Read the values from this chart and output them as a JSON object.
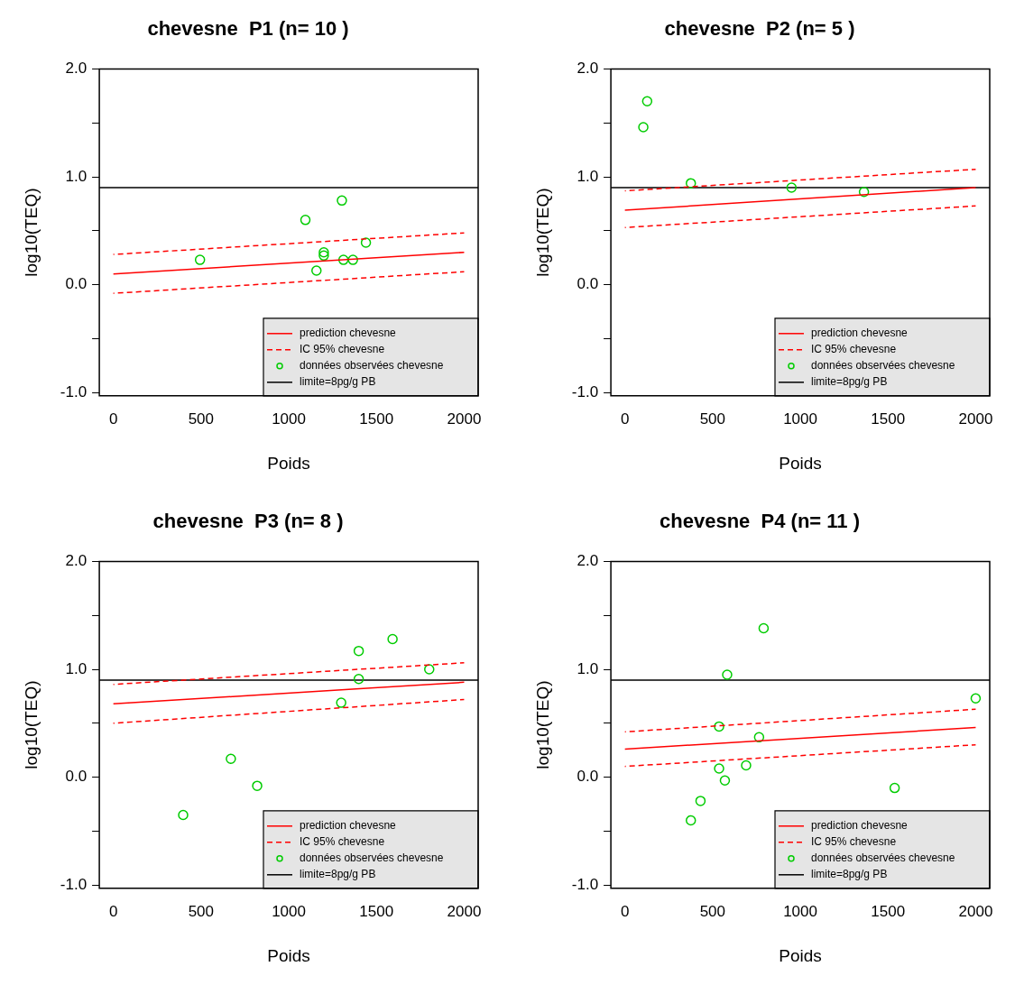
{
  "chart_data": [
    {
      "type": "scatter",
      "title": "chevesne  P1 (n= 10 )",
      "xlabel": "Poids",
      "ylabel": "log10(TEQ)",
      "xlim": [
        -80,
        2080
      ],
      "ylim": [
        -1.03,
        2.0
      ],
      "xticks": [
        0,
        500,
        1000,
        1500,
        2000
      ],
      "yticks": [
        {
          "value": -1,
          "label": "-1.0"
        },
        {
          "value": -0.5,
          "label": null
        },
        {
          "value": 0,
          "label": "0.0"
        },
        {
          "value": 0.5,
          "label": null
        },
        {
          "value": 1,
          "label": "1.0"
        },
        {
          "value": 1.5,
          "label": null
        },
        {
          "value": 2,
          "label": "2.0"
        }
      ],
      "grid": false,
      "legend": "bottom right",
      "series": [
        {
          "name": "prediction chevesne",
          "type": "line",
          "line_style": "solid",
          "color": "#ff0000",
          "x": [
            0,
            2000
          ],
          "values": [
            0.1,
            0.3
          ]
        },
        {
          "name": "IC 95% chevesne",
          "type": "line",
          "line_style": "dashed",
          "color": "#ff0000",
          "x": [
            0,
            2000
          ],
          "values": [
            0.28,
            0.48
          ]
        },
        {
          "type": "line",
          "line_style": "dashed",
          "color": "#ff0000",
          "x": [
            0,
            2000
          ],
          "values": [
            -0.08,
            0.12
          ]
        },
        {
          "name": "données observées chevesne",
          "type": "scatter",
          "marker": "circle",
          "color": "#00cc00",
          "x": [
            494,
            1095,
            1303,
            1200,
            1200,
            1158,
            1312,
            1366,
            1440
          ],
          "values": [
            0.23,
            0.6,
            0.78,
            0.3,
            0.27,
            0.13,
            0.23,
            0.23,
            0.39
          ]
        },
        {
          "name": "limite=8pg/g PB",
          "type": "line",
          "line_style": "solid",
          "color": "#000000",
          "x": [
            -80,
            2080
          ],
          "values": [
            0.9,
            0.9
          ]
        }
      ]
    },
    {
      "type": "scatter",
      "title": "chevesne  P2 (n= 5 )",
      "xlabel": "Poids",
      "ylabel": "log10(TEQ)",
      "xlim": [
        -80,
        2080
      ],
      "ylim": [
        -1.03,
        2.0
      ],
      "xticks": [
        0,
        500,
        1000,
        1500,
        2000
      ],
      "yticks": [
        {
          "value": -1,
          "label": "-1.0"
        },
        {
          "value": -0.5,
          "label": null
        },
        {
          "value": 0,
          "label": "0.0"
        },
        {
          "value": 0.5,
          "label": null
        },
        {
          "value": 1,
          "label": "1.0"
        },
        {
          "value": 1.5,
          "label": null
        },
        {
          "value": 2,
          "label": "2.0"
        }
      ],
      "grid": false,
      "legend": "bottom right",
      "series": [
        {
          "name": "prediction chevesne",
          "type": "line",
          "line_style": "solid",
          "color": "#ff0000",
          "x": [
            0,
            2000
          ],
          "values": [
            0.69,
            0.9
          ]
        },
        {
          "name": "IC 95% chevesne",
          "type": "line",
          "line_style": "dashed",
          "color": "#ff0000",
          "x": [
            0,
            2000
          ],
          "values": [
            0.87,
            1.07
          ]
        },
        {
          "type": "line",
          "line_style": "dashed",
          "color": "#ff0000",
          "x": [
            0,
            2000
          ],
          "values": [
            0.53,
            0.73
          ]
        },
        {
          "name": "données observées chevesne",
          "type": "scatter",
          "marker": "circle",
          "color": "#00cc00",
          "x": [
            127,
            105,
            376,
            950,
            1363
          ],
          "values": [
            1.7,
            1.46,
            0.94,
            0.9,
            0.86
          ]
        },
        {
          "name": "limite=8pg/g PB",
          "type": "line",
          "line_style": "solid",
          "color": "#000000",
          "x": [
            -80,
            2080
          ],
          "values": [
            0.9,
            0.9
          ]
        }
      ]
    },
    {
      "type": "scatter",
      "title": "chevesne  P3 (n= 8 )",
      "xlabel": "Poids",
      "ylabel": "log10(TEQ)",
      "xlim": [
        -80,
        2080
      ],
      "ylim": [
        -1.03,
        2.0
      ],
      "xticks": [
        0,
        500,
        1000,
        1500,
        2000
      ],
      "yticks": [
        {
          "value": -1,
          "label": "-1.0"
        },
        {
          "value": -0.5,
          "label": null
        },
        {
          "value": 0,
          "label": "0.0"
        },
        {
          "value": 0.5,
          "label": null
        },
        {
          "value": 1,
          "label": "1.0"
        },
        {
          "value": 1.5,
          "label": null
        },
        {
          "value": 2,
          "label": "2.0"
        }
      ],
      "grid": false,
      "legend": "bottom right",
      "series": [
        {
          "name": "prediction chevesne",
          "type": "line",
          "line_style": "solid",
          "color": "#ff0000",
          "x": [
            0,
            2000
          ],
          "values": [
            0.68,
            0.88
          ]
        },
        {
          "name": "IC 95% chevesne",
          "type": "line",
          "line_style": "dashed",
          "color": "#ff0000",
          "x": [
            0,
            2000
          ],
          "values": [
            0.86,
            1.06
          ]
        },
        {
          "type": "line",
          "line_style": "dashed",
          "color": "#ff0000",
          "x": [
            0,
            2000
          ],
          "values": [
            0.5,
            0.72
          ]
        },
        {
          "name": "données observées chevesne",
          "type": "scatter",
          "marker": "circle",
          "color": "#00cc00",
          "x": [
            1399,
            1592,
            1801,
            1399,
            1299,
            670,
            820,
            398
          ],
          "values": [
            1.17,
            1.28,
            1.0,
            0.91,
            0.69,
            0.17,
            -0.08,
            -0.35
          ]
        },
        {
          "name": "limite=8pg/g PB",
          "type": "line",
          "line_style": "solid",
          "color": "#000000",
          "x": [
            -80,
            2080
          ],
          "values": [
            0.9,
            0.9
          ]
        }
      ]
    },
    {
      "type": "scatter",
      "title": "chevesne  P4 (n= 11 )",
      "xlabel": "Poids",
      "ylabel": "log10(TEQ)",
      "xlim": [
        -80,
        2080
      ],
      "ylim": [
        -1.03,
        2.0
      ],
      "xticks": [
        0,
        500,
        1000,
        1500,
        2000
      ],
      "yticks": [
        {
          "value": -1,
          "label": "-1.0"
        },
        {
          "value": -0.5,
          "label": null
        },
        {
          "value": 0,
          "label": "0.0"
        },
        {
          "value": 0.5,
          "label": null
        },
        {
          "value": 1,
          "label": "1.0"
        },
        {
          "value": 1.5,
          "label": null
        },
        {
          "value": 2,
          "label": "2.0"
        }
      ],
      "grid": false,
      "legend": "bottom right",
      "series": [
        {
          "name": "prediction chevesne",
          "type": "line",
          "line_style": "solid",
          "color": "#ff0000",
          "x": [
            0,
            2000
          ],
          "values": [
            0.26,
            0.46
          ]
        },
        {
          "name": "IC 95% chevesne",
          "type": "line",
          "line_style": "dashed",
          "color": "#ff0000",
          "x": [
            0,
            2000
          ],
          "values": [
            0.42,
            0.63
          ]
        },
        {
          "type": "line",
          "line_style": "dashed",
          "color": "#ff0000",
          "x": [
            0,
            2000
          ],
          "values": [
            0.1,
            0.3
          ]
        },
        {
          "name": "données observées chevesne",
          "type": "scatter",
          "marker": "circle",
          "color": "#00cc00",
          "x": [
            791,
            583,
            2000,
            537,
            765,
            691,
            537,
            570,
            431,
            376,
            1538
          ],
          "values": [
            1.38,
            0.95,
            0.73,
            0.47,
            0.37,
            0.11,
            0.08,
            -0.03,
            -0.22,
            -0.4,
            -0.1
          ]
        },
        {
          "name": "limite=8pg/g PB",
          "type": "line",
          "line_style": "solid",
          "color": "#000000",
          "x": [
            -80,
            2080
          ],
          "values": [
            0.9,
            0.9
          ]
        }
      ]
    }
  ]
}
